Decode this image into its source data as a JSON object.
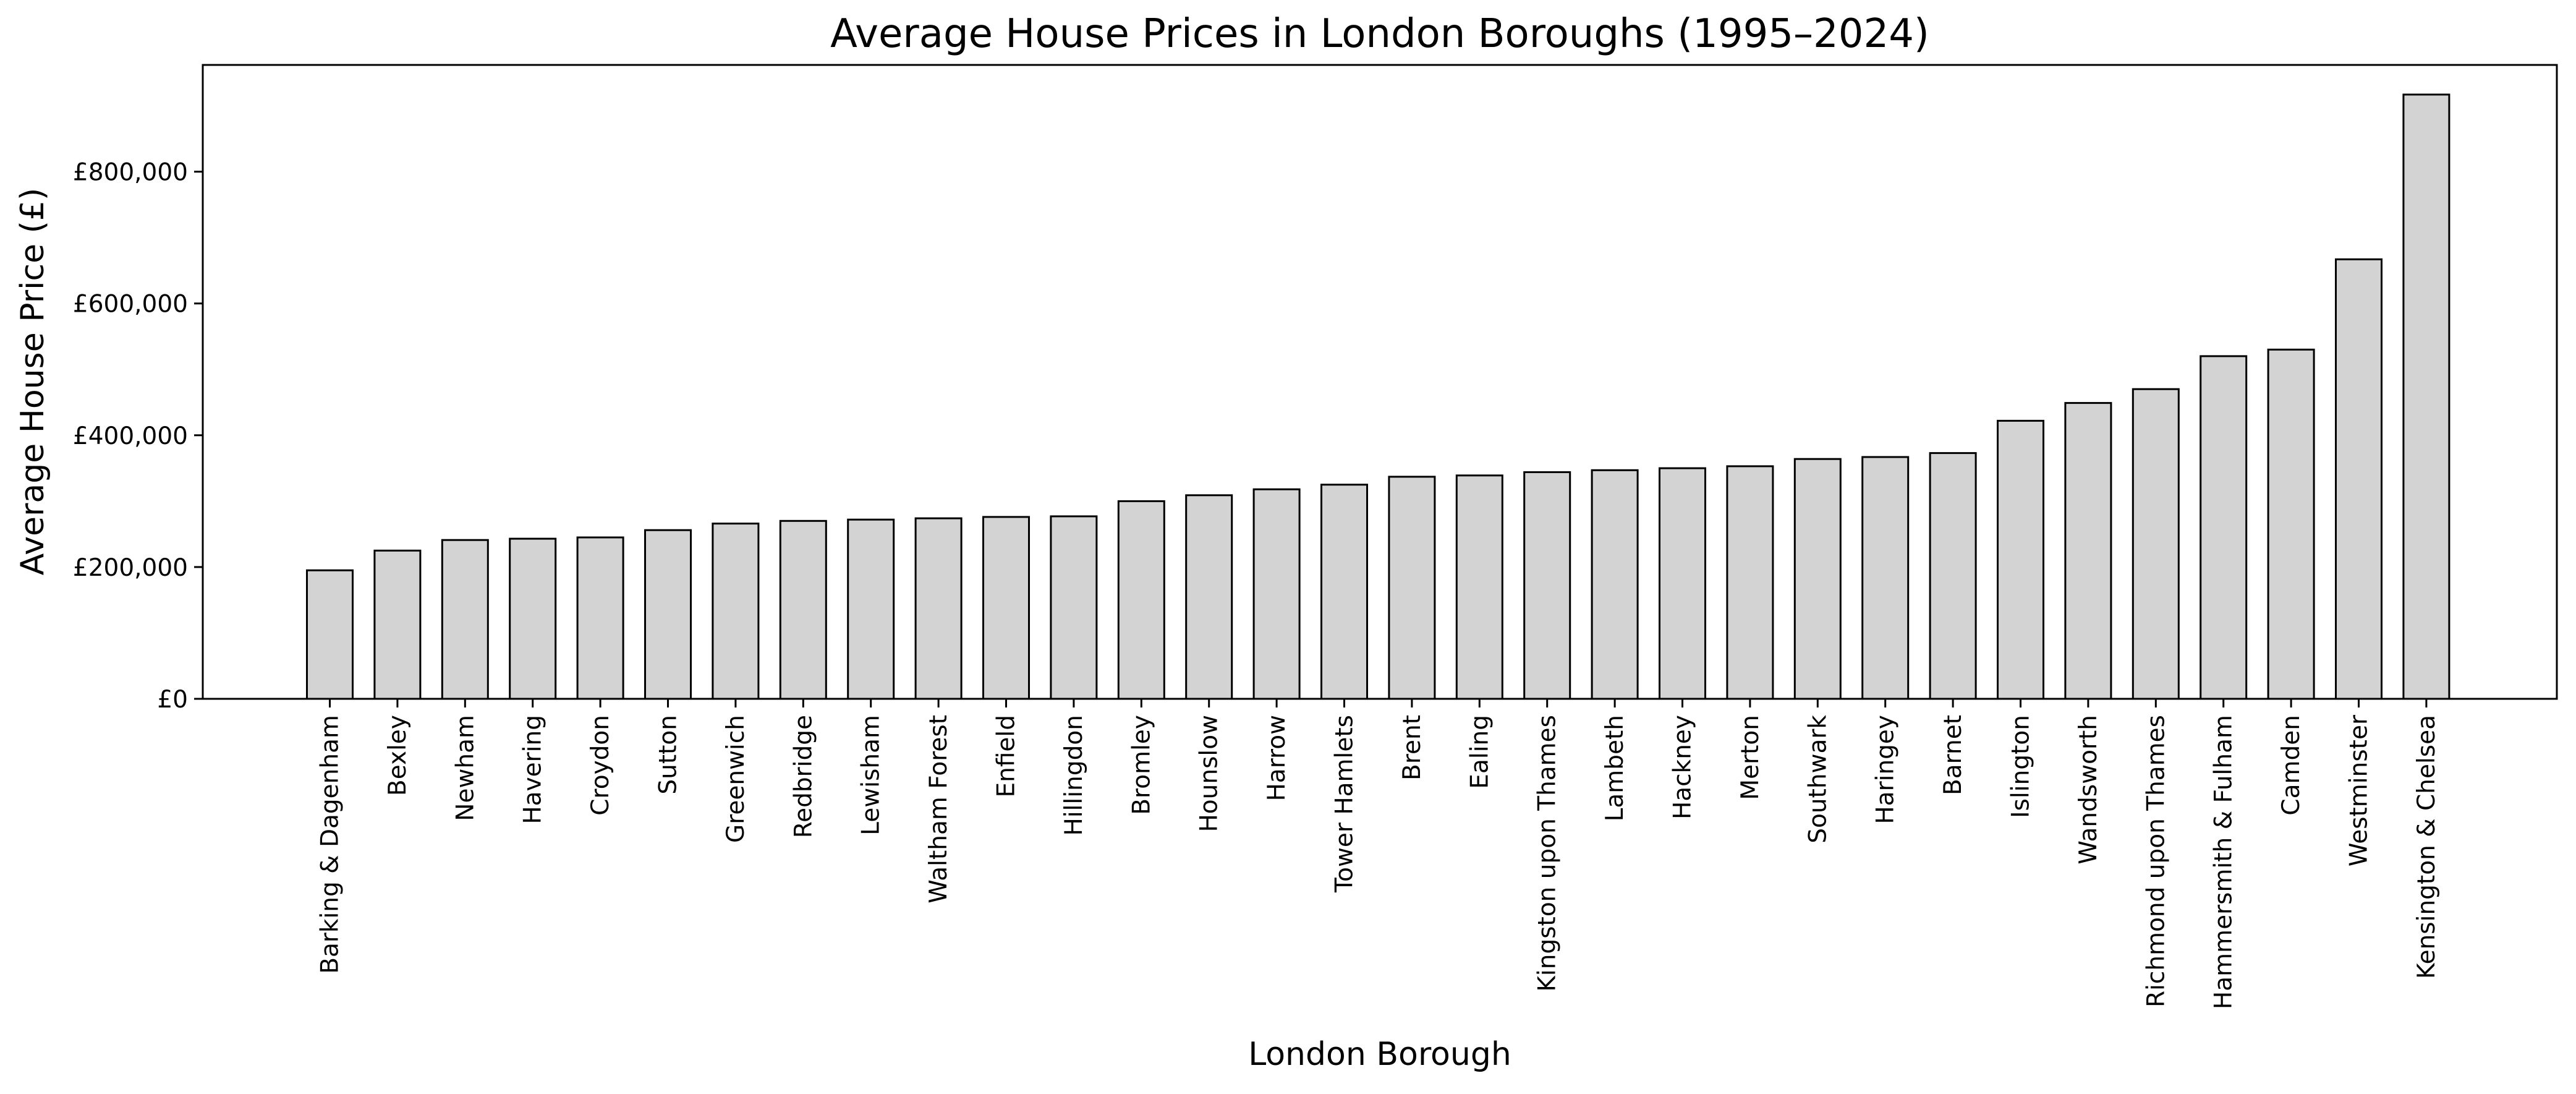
{
  "chart_data": {
    "type": "bar",
    "title": "Average House Prices in London Boroughs (1995–2024)",
    "xlabel": "London Borough",
    "ylabel": "Average House Price (£)",
    "ylim": [
      0,
      962000
    ],
    "grid": false,
    "bar_color": "#d3d3d3",
    "bar_edge_color": "#000000",
    "y_ticks": [
      {
        "value": 0,
        "label": "£0"
      },
      {
        "value": 200000,
        "label": "£200,000"
      },
      {
        "value": 400000,
        "label": "£400,000"
      },
      {
        "value": 600000,
        "label": "£600,000"
      },
      {
        "value": 800000,
        "label": "£800,000"
      }
    ],
    "categories": [
      "Barking & Dagenham",
      "Bexley",
      "Newham",
      "Havering",
      "Croydon",
      "Sutton",
      "Greenwich",
      "Redbridge",
      "Lewisham",
      "Waltham Forest",
      "Enfield",
      "Hillingdon",
      "Bromley",
      "Hounslow",
      "Harrow",
      "Tower Hamlets",
      "Brent",
      "Ealing",
      "Kingston upon Thames",
      "Lambeth",
      "Hackney",
      "Merton",
      "Southwark",
      "Haringey",
      "Barnet",
      "Islington",
      "Wandsworth",
      "Richmond upon Thames",
      "Hammersmith & Fulham",
      "Camden",
      "Westminster",
      "Kensington & Chelsea"
    ],
    "values": [
      195000,
      225000,
      241000,
      243000,
      245000,
      256000,
      266000,
      270000,
      272000,
      274000,
      276000,
      277000,
      300000,
      309000,
      318000,
      325000,
      337000,
      339000,
      344000,
      347000,
      350000,
      353000,
      364000,
      367000,
      373000,
      422000,
      449000,
      470000,
      520000,
      530000,
      667000,
      917000
    ]
  }
}
